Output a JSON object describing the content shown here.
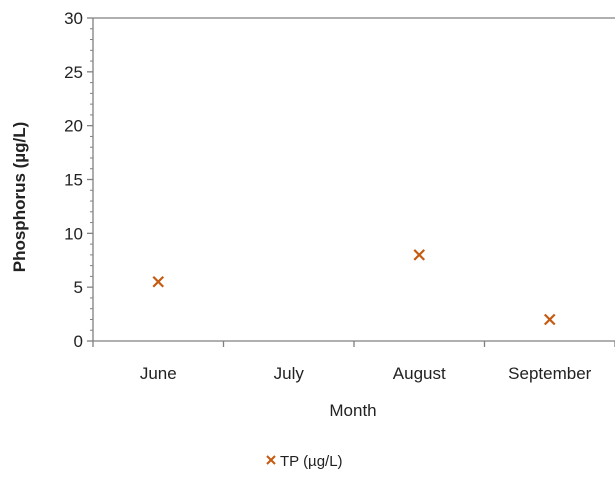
{
  "chart_data": {
    "type": "scatter",
    "title": "",
    "xlabel": "Month",
    "ylabel": "Phosphorus (µg/L)",
    "categories": [
      "June",
      "July",
      "August",
      "September"
    ],
    "ylim": [
      0,
      30
    ],
    "yticks": [
      0,
      5,
      10,
      15,
      20,
      25,
      30
    ],
    "grid": false,
    "legend_position": "bottom",
    "series": [
      {
        "name": "TP (µg/L)",
        "marker": "x",
        "color": "#c55a11",
        "points": [
          {
            "x": "June",
            "y": 5.5
          },
          {
            "x": "August",
            "y": 8
          },
          {
            "x": "September",
            "y": 2
          }
        ]
      }
    ]
  }
}
